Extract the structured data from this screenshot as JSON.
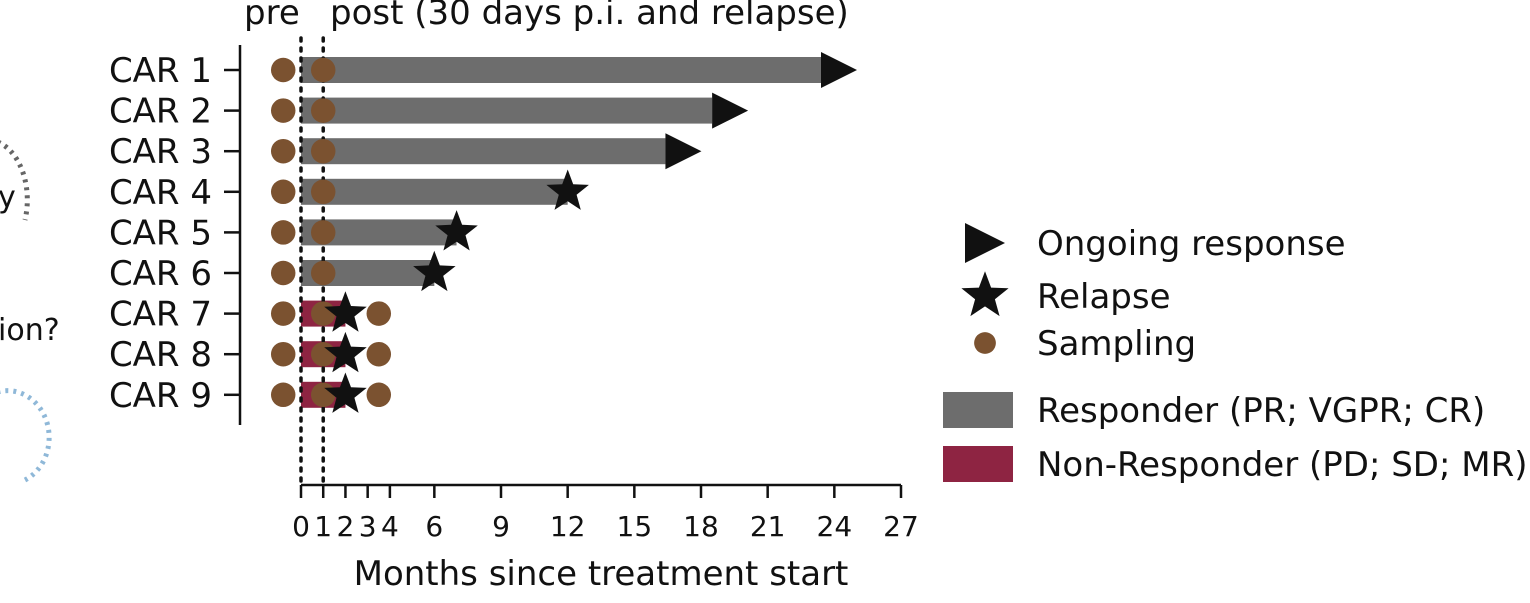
{
  "chart_data": {
    "type": "swimmer",
    "annotations": [
      "pre",
      "post (30 days p.i. and relapse)"
    ],
    "xlabel": "Months since treatment start",
    "categories": [
      "CAR 1",
      "CAR 2",
      "CAR 3",
      "CAR 4",
      "CAR 5",
      "CAR 6",
      "CAR 7",
      "CAR 8",
      "CAR 9"
    ],
    "series": [
      {
        "name": "Responder (PR; VGPR; CR)",
        "color": "#6d6d6d",
        "values": [
          23.4,
          18.5,
          16.4,
          12,
          7,
          6,
          null,
          null,
          null
        ]
      },
      {
        "name": "Non-Responder (PD; SD; MR)",
        "color": "#8e2442",
        "values": [
          null,
          null,
          null,
          null,
          null,
          null,
          2,
          2,
          2
        ]
      }
    ],
    "markers": [
      {
        "name": "Ongoing response",
        "shape": "triangle",
        "color": "#111111",
        "values": [
          23.4,
          18.5,
          16.4,
          null,
          null,
          null,
          null,
          null,
          null
        ]
      },
      {
        "name": "Relapse",
        "shape": "star",
        "color": "#111111",
        "values": [
          null,
          null,
          null,
          12,
          7,
          6,
          2,
          2,
          2
        ]
      },
      {
        "name": "Sampling",
        "shape": "circle",
        "color": "#7b5230",
        "values": [
          [
            -0.8,
            1
          ],
          [
            -0.8,
            1
          ],
          [
            -0.8,
            1
          ],
          [
            -0.8,
            1
          ],
          [
            -0.8,
            1
          ],
          [
            -0.8,
            1
          ],
          [
            -0.8,
            1,
            3.5
          ],
          [
            -0.8,
            1,
            3.5
          ],
          [
            -0.8,
            1,
            3.5
          ]
        ]
      }
    ],
    "reference_lines": [
      0,
      1
    ],
    "xlim": [
      0,
      27
    ],
    "xticks": [
      0,
      1,
      2,
      3,
      4,
      6,
      9,
      12,
      15,
      18,
      21,
      24,
      27
    ]
  },
  "fragments": [
    "y",
    "ion?"
  ]
}
